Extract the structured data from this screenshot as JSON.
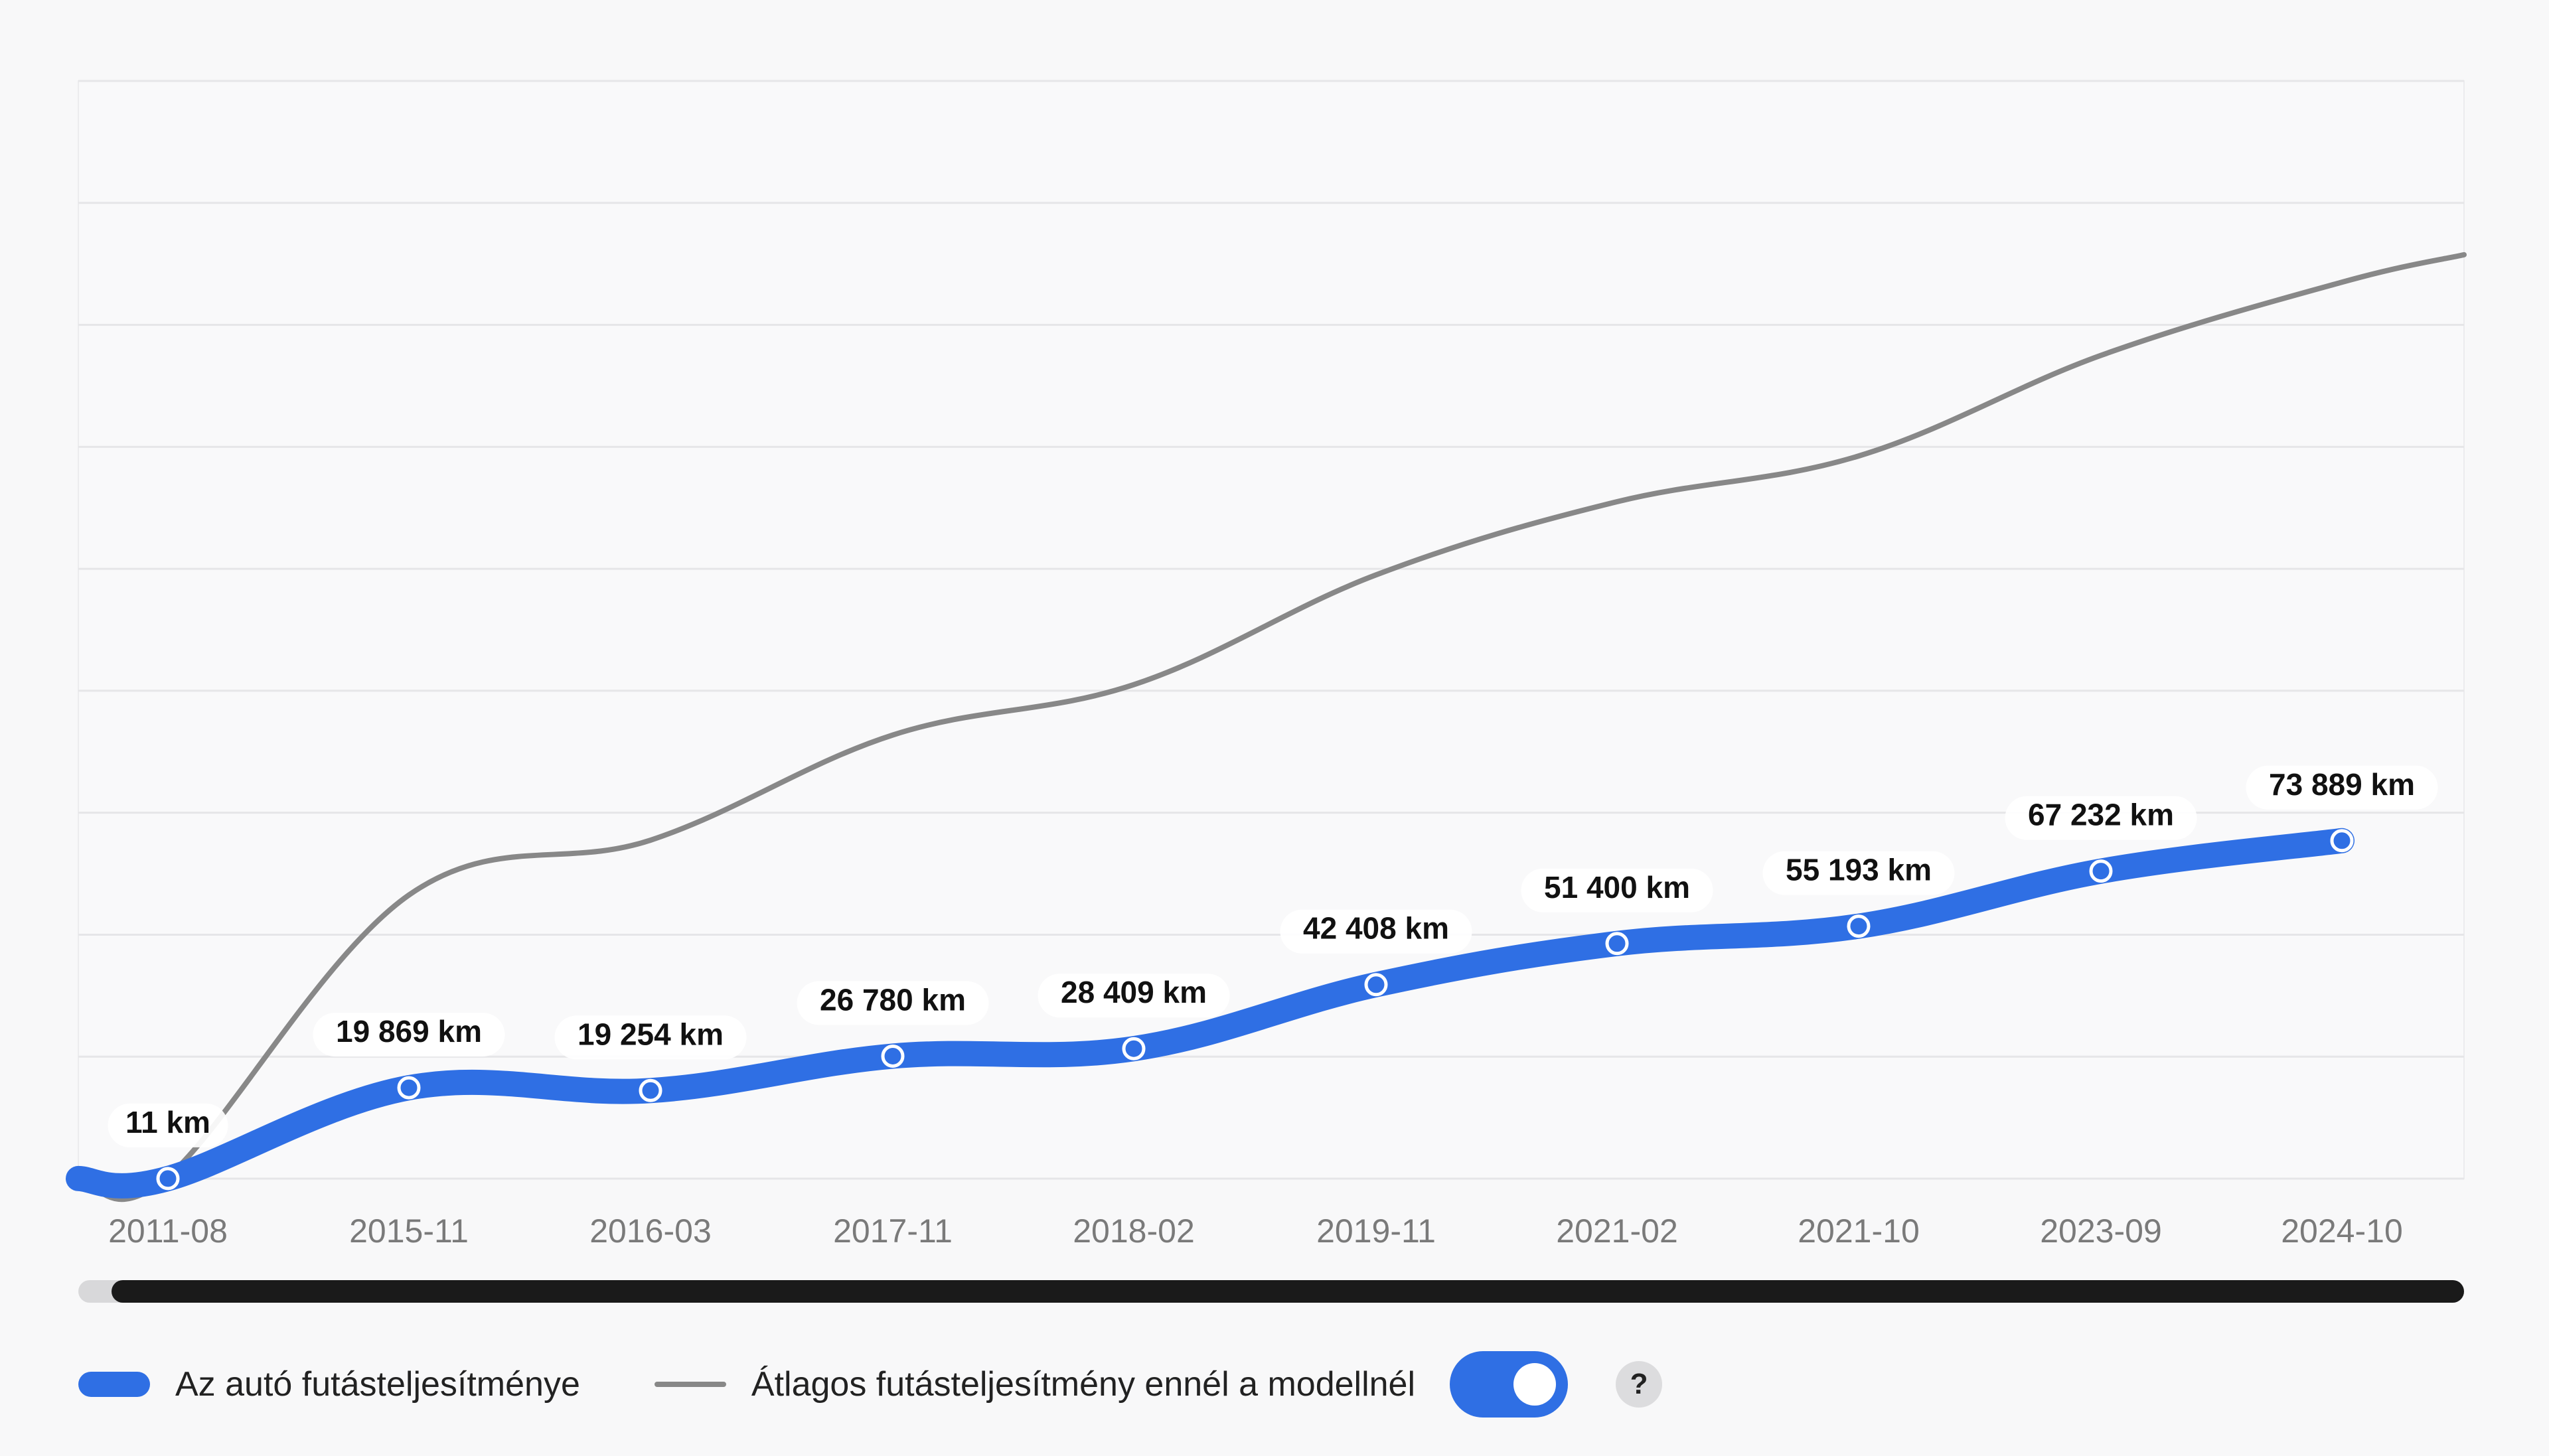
{
  "chart_data": {
    "type": "line",
    "categories": [
      "2011-08",
      "2015-11",
      "2016-03",
      "2017-11",
      "2018-02",
      "2019-11",
      "2021-02",
      "2021-10",
      "2023-09",
      "2024-10"
    ],
    "series": [
      {
        "name": "Az autó futásteljesítménye",
        "values": [
          11,
          19869,
          19254,
          26780,
          28409,
          42408,
          51400,
          55193,
          67232,
          73889
        ],
        "labels": [
          "11 km",
          "19 869 km",
          "19 254 km",
          "26 780 km",
          "28 409 km",
          "42 408 km",
          "51 400 km",
          "55 193 km",
          "67 232 km",
          "73 889 km"
        ]
      },
      {
        "name": "Átlagos futásteljesítmény ennél a modellnél",
        "values": [
          400,
          62000,
          74000,
          97000,
          108000,
          132000,
          148000,
          158000,
          180000,
          196000
        ]
      }
    ],
    "ylim": [
      0,
      240000
    ],
    "grid": true,
    "legend_position": "bottom-left"
  },
  "legend": {
    "car_label": "Az autó futásteljesítménye",
    "avg_label": "Átlagos futásteljesítmény ennél a modellnél",
    "help_label": "?"
  },
  "toggle": {
    "on": true
  },
  "colors": {
    "car": "#2f6fe4",
    "avg": "#888888",
    "grid": "#e6e6e8",
    "axis_text": "#7a7a7a",
    "label_text": "#111111"
  }
}
